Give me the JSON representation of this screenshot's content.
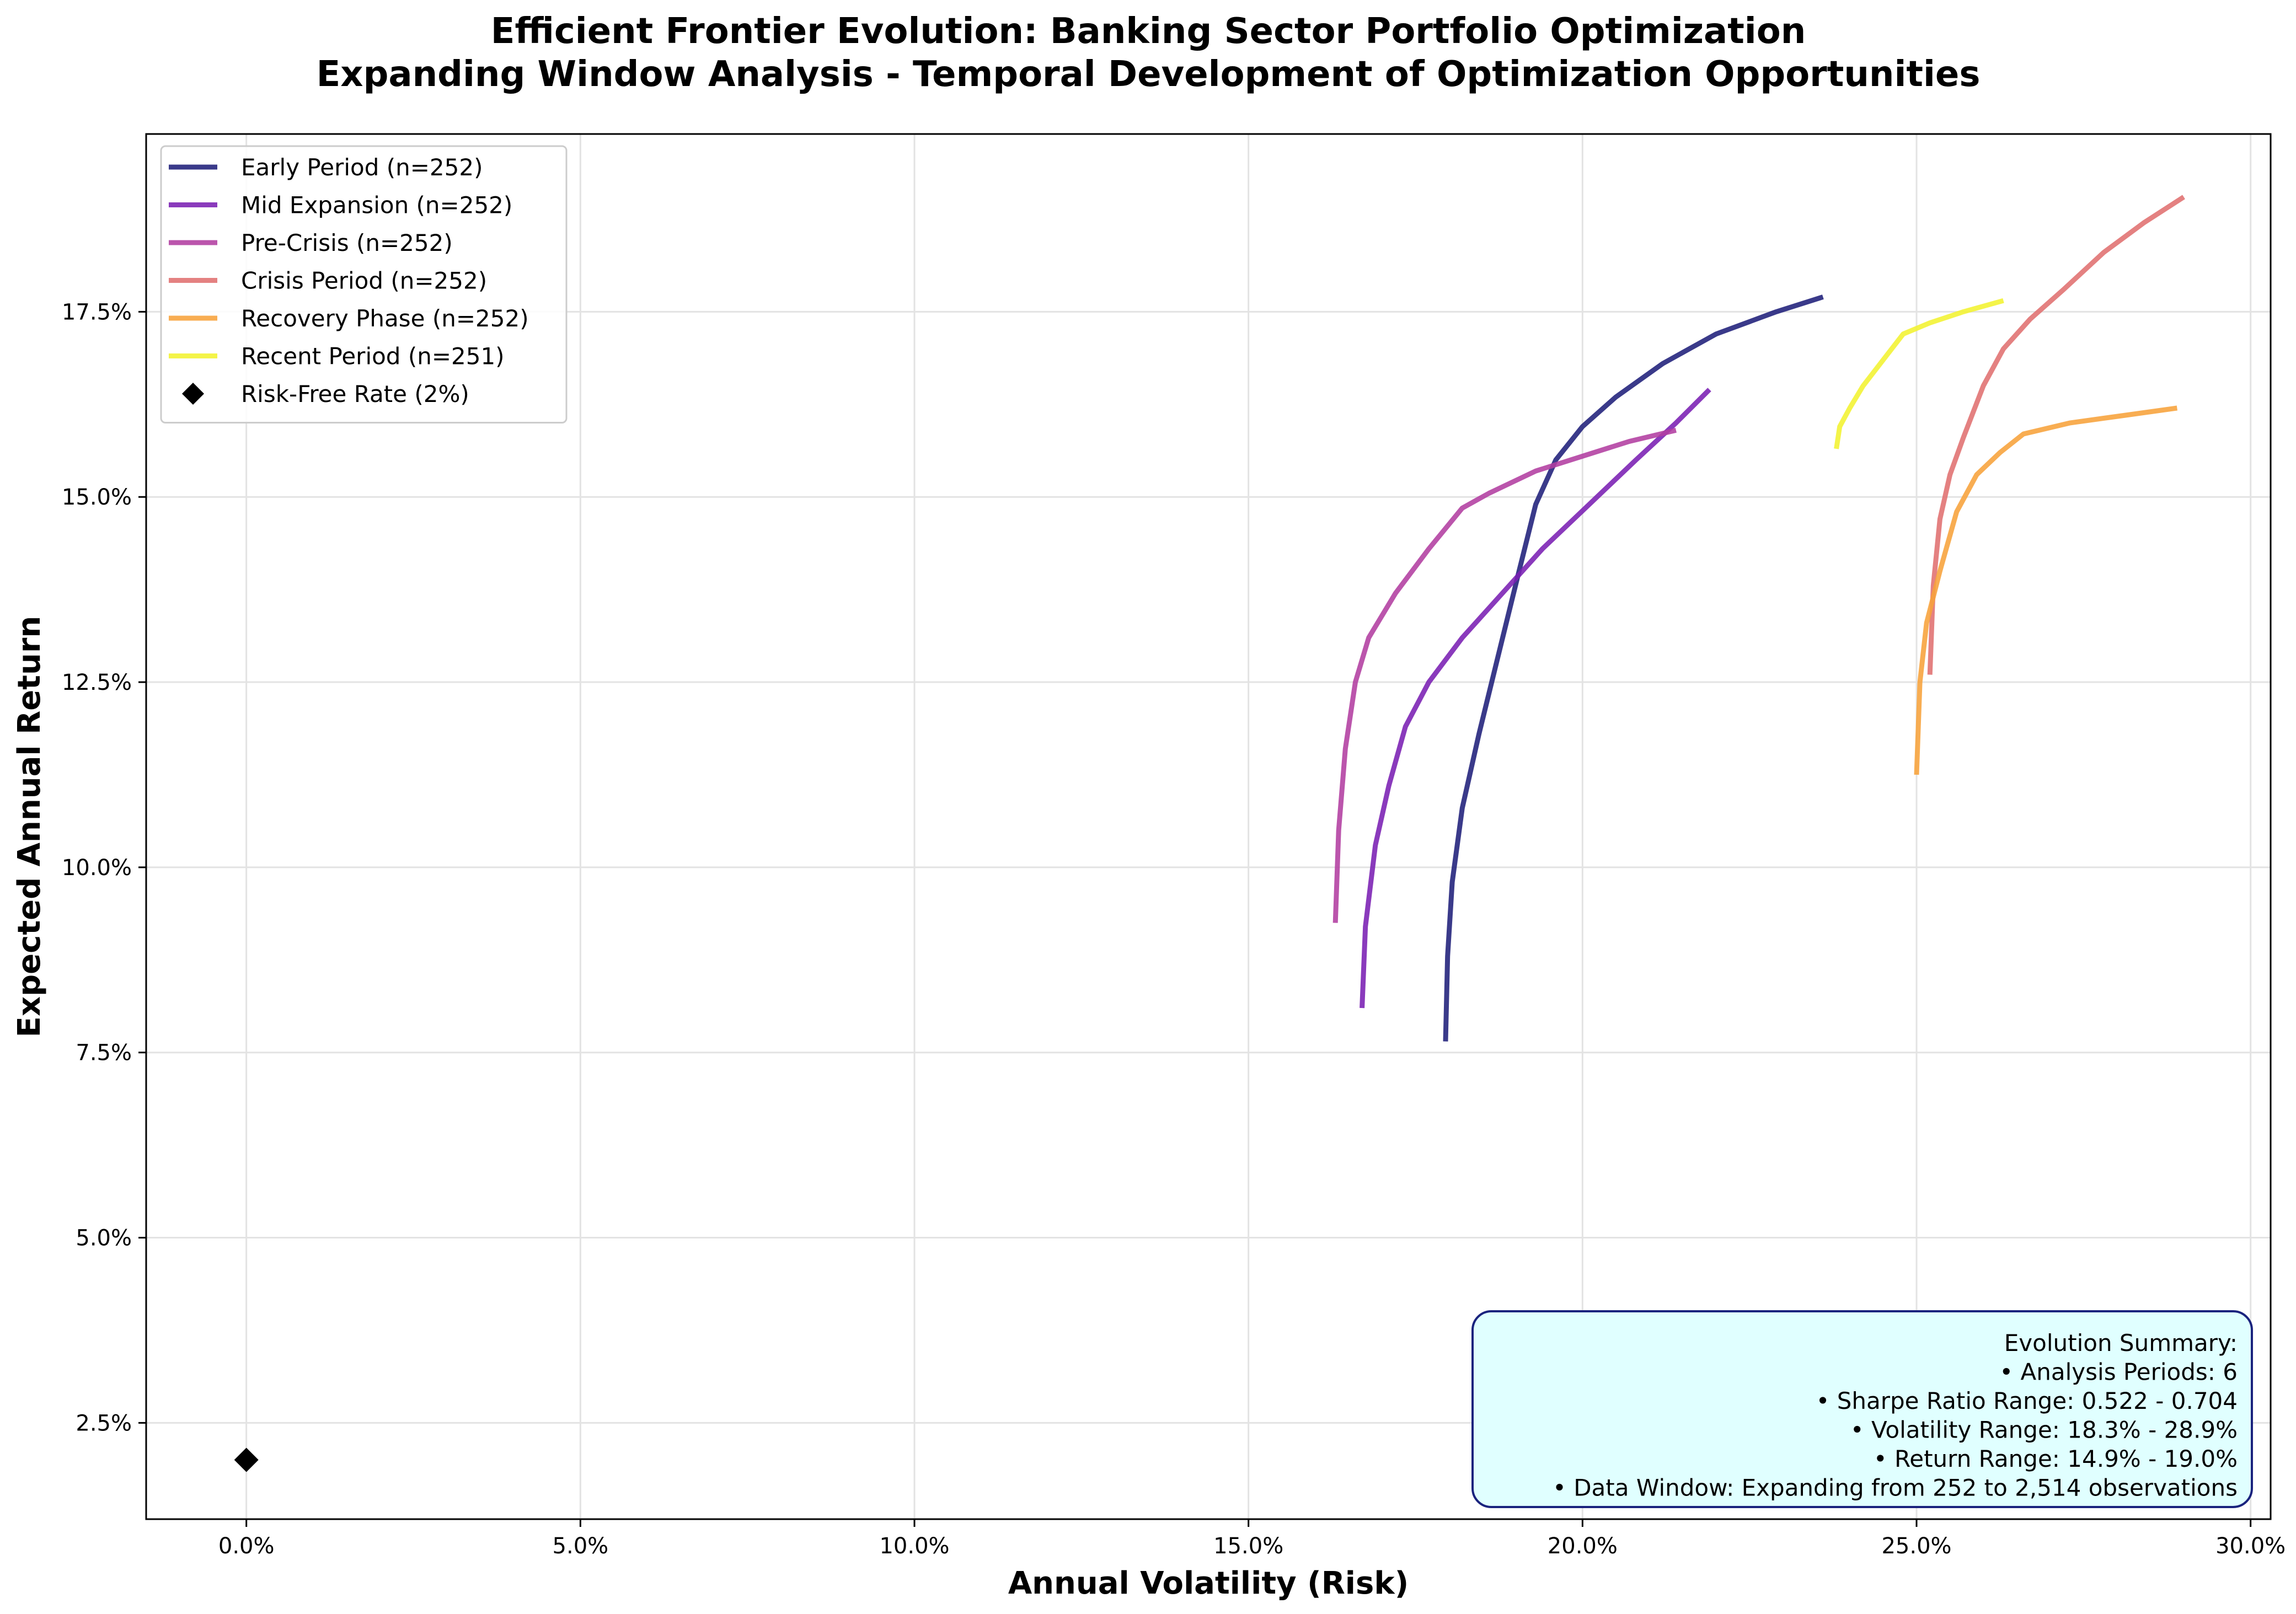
{
  "chart_data": {
    "type": "line",
    "title": "Efficient Frontier Evolution: Banking Sector Portfolio Optimization",
    "subtitle": "Expanding Window Analysis - Temporal Development of Optimization Opportunities",
    "xlabel": "Annual Volatility (Risk)",
    "ylabel": "Expected Annual Return",
    "xlim": [
      -1.5,
      30.3
    ],
    "ylim": [
      1.2,
      19.9
    ],
    "x_ticks": [
      0,
      5,
      10,
      15,
      20,
      25,
      30
    ],
    "x_tick_labels": [
      "0.0%",
      "5.0%",
      "10.0%",
      "15.0%",
      "20.0%",
      "25.0%",
      "30.0%"
    ],
    "y_ticks": [
      2.5,
      5,
      7.5,
      10,
      12.5,
      15,
      17.5
    ],
    "y_tick_labels": [
      "2.5%",
      "5.0%",
      "7.5%",
      "10.0%",
      "12.5%",
      "15.0%",
      "17.5%"
    ],
    "grid": true,
    "legend_position": "upper-left",
    "series": [
      {
        "name": "Early Period (n=252)",
        "color": "#1f1f7a",
        "x": [
          17.95,
          17.98,
          18.05,
          18.2,
          18.45,
          18.75,
          19.05,
          19.3,
          19.6,
          20.0,
          20.5,
          21.2,
          22.0,
          22.9,
          23.6
        ],
        "y": [
          7.65,
          8.8,
          9.8,
          10.8,
          11.8,
          12.9,
          14.0,
          14.9,
          15.5,
          15.95,
          16.35,
          16.8,
          17.2,
          17.5,
          17.7
        ]
      },
      {
        "name": "Mid Expansion (n=252)",
        "color": "#7a1fb3",
        "x": [
          16.7,
          16.75,
          16.9,
          17.1,
          17.35,
          17.7,
          18.2,
          18.8,
          19.4,
          20.1,
          20.8,
          21.4,
          21.9
        ],
        "y": [
          8.1,
          9.2,
          10.3,
          11.1,
          11.9,
          12.5,
          13.1,
          13.7,
          14.3,
          14.9,
          15.5,
          16.0,
          16.45
        ]
      },
      {
        "name": "Pre-Crisis (n=252)",
        "color": "#b23ea1",
        "x": [
          16.3,
          16.35,
          16.45,
          16.6,
          16.8,
          17.2,
          17.7,
          18.2,
          18.6,
          19.3,
          20.0,
          20.7,
          21.4
        ],
        "y": [
          9.25,
          10.5,
          11.6,
          12.5,
          13.1,
          13.7,
          14.3,
          14.85,
          15.05,
          15.35,
          15.55,
          15.75,
          15.9
        ]
      },
      {
        "name": "Crisis Period (n=252)",
        "color": "#e0706f",
        "x": [
          25.2,
          25.25,
          25.35,
          25.5,
          25.7,
          26.0,
          26.3,
          26.7,
          27.2,
          27.8,
          28.4,
          29.0
        ],
        "y": [
          12.6,
          13.8,
          14.7,
          15.3,
          15.8,
          16.5,
          17.0,
          17.4,
          17.8,
          18.3,
          18.7,
          19.05
        ]
      },
      {
        "name": "Recovery Phase (n=252)",
        "color": "#f7a23a",
        "x": [
          25.0,
          25.05,
          25.15,
          25.35,
          25.6,
          25.9,
          26.25,
          26.6,
          27.3,
          28.1,
          28.9
        ],
        "y": [
          11.25,
          12.5,
          13.3,
          14.0,
          14.8,
          15.3,
          15.6,
          15.85,
          16.0,
          16.1,
          16.2
        ]
      },
      {
        "name": "Recent Period (n=251)",
        "color": "#f2f230",
        "x": [
          23.8,
          23.85,
          24.0,
          24.2,
          24.5,
          24.8,
          25.2,
          25.7,
          26.3
        ],
        "y": [
          15.65,
          15.95,
          16.2,
          16.5,
          16.85,
          17.2,
          17.35,
          17.5,
          17.65
        ]
      }
    ],
    "markers": [
      {
        "name": "Risk-Free Rate (2%)",
        "x": 0,
        "y": 2.0,
        "color": "#000000",
        "shape": "diamond"
      }
    ],
    "annotation": {
      "lines": [
        "Evolution Summary:",
        "• Analysis Periods: 6",
        "• Sharpe Ratio Range: 0.522 - 0.704",
        "• Volatility Range: 18.3% - 28.9%",
        "• Return Range: 14.9% - 19.0%",
        "• Data Window: Expanding from 252 to 2,514 observations"
      ],
      "position": "lower-right",
      "background": "#e0ffff",
      "border": "#1a237e"
    }
  }
}
